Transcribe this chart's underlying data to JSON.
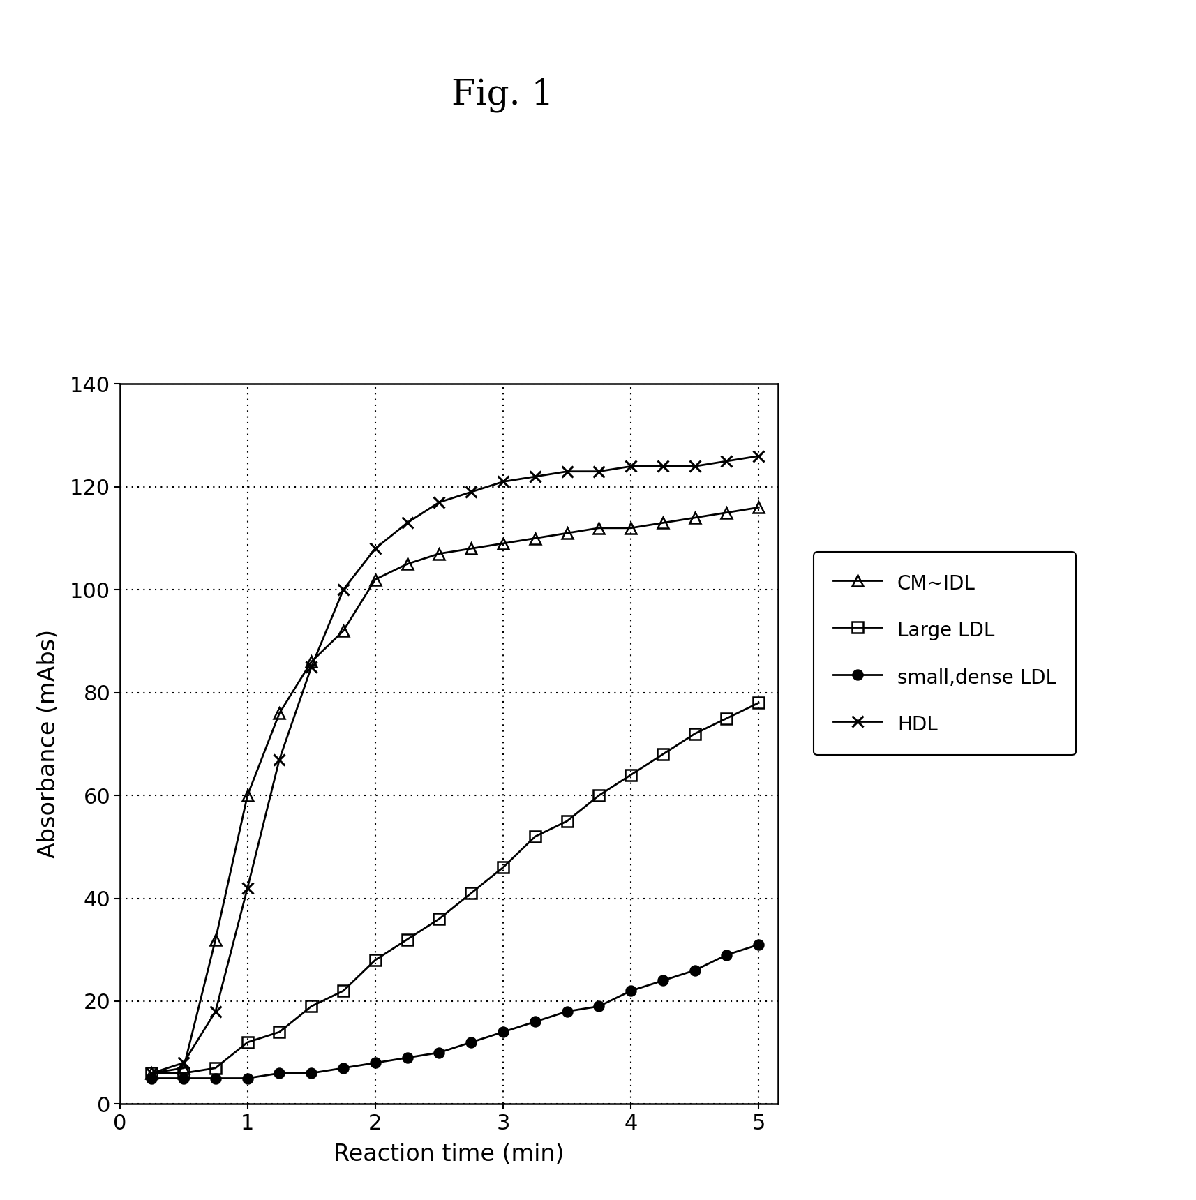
{
  "title": "Fig. 1",
  "xlabel": "Reaction time (min)",
  "ylabel": "Absorbance (mAbs)",
  "xlim": [
    0.1,
    5.15
  ],
  "ylim": [
    0,
    140
  ],
  "xticks": [
    0,
    1,
    2,
    3,
    4,
    5
  ],
  "yticks": [
    0,
    20,
    40,
    60,
    80,
    100,
    120,
    140
  ],
  "background_color": "#ffffff",
  "series": {
    "cm_idl": {
      "label": "CM~IDL",
      "marker": "^",
      "color": "#000000",
      "fillstyle": "none",
      "x": [
        0.25,
        0.5,
        0.75,
        1.0,
        1.25,
        1.5,
        1.75,
        2.0,
        2.25,
        2.5,
        2.75,
        3.0,
        3.25,
        3.5,
        3.75,
        4.0,
        4.25,
        4.5,
        4.75,
        5.0
      ],
      "y": [
        6,
        7,
        32,
        60,
        76,
        86,
        92,
        102,
        105,
        107,
        108,
        109,
        110,
        111,
        112,
        112,
        113,
        114,
        115,
        116
      ]
    },
    "large_ldl": {
      "label": "Large LDL",
      "marker": "s",
      "color": "#000000",
      "fillstyle": "none",
      "x": [
        0.25,
        0.5,
        0.75,
        1.0,
        1.25,
        1.5,
        1.75,
        2.0,
        2.25,
        2.5,
        2.75,
        3.0,
        3.25,
        3.5,
        3.75,
        4.0,
        4.25,
        4.5,
        4.75,
        5.0
      ],
      "y": [
        6,
        6,
        7,
        12,
        14,
        19,
        22,
        28,
        32,
        36,
        41,
        46,
        52,
        55,
        60,
        64,
        68,
        72,
        75,
        78
      ]
    },
    "small_dense_ldl": {
      "label": "small,dense LDL",
      "marker": "o",
      "color": "#000000",
      "fillstyle": "full",
      "x": [
        0.25,
        0.5,
        0.75,
        1.0,
        1.25,
        1.5,
        1.75,
        2.0,
        2.25,
        2.5,
        2.75,
        3.0,
        3.25,
        3.5,
        3.75,
        4.0,
        4.25,
        4.5,
        4.75,
        5.0
      ],
      "y": [
        5,
        5,
        5,
        5,
        6,
        6,
        7,
        8,
        9,
        10,
        12,
        14,
        16,
        18,
        19,
        22,
        24,
        26,
        29,
        31
      ]
    },
    "hdl": {
      "label": "HDL",
      "marker": "x",
      "color": "#000000",
      "fillstyle": "full",
      "x": [
        0.25,
        0.5,
        0.75,
        1.0,
        1.25,
        1.5,
        1.75,
        2.0,
        2.25,
        2.5,
        2.75,
        3.0,
        3.25,
        3.5,
        3.75,
        4.0,
        4.25,
        4.5,
        4.75,
        5.0
      ],
      "y": [
        6,
        8,
        18,
        42,
        67,
        85,
        100,
        108,
        113,
        117,
        119,
        121,
        122,
        123,
        123,
        124,
        124,
        124,
        125,
        126
      ]
    }
  }
}
